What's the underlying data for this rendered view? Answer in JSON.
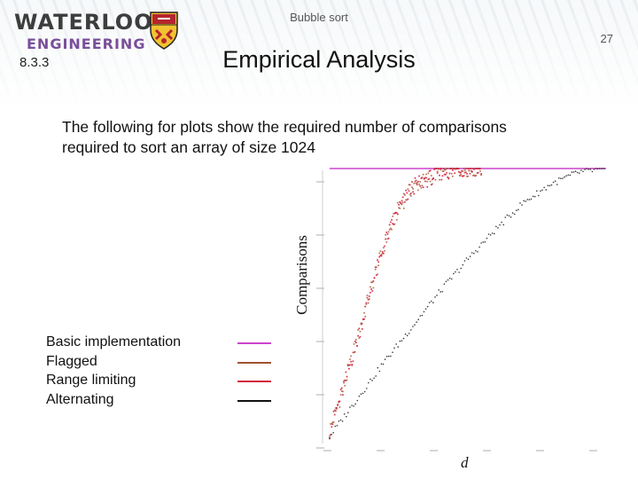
{
  "header": {
    "title": "Bubble sort",
    "page_number": "27",
    "logo_line1": "WATERLOO",
    "logo_line2": "ENGINEERING"
  },
  "slide": {
    "section": "8.3.3",
    "title": "Empirical Analysis",
    "intro_line1": "The following for plots show the required number of comparisons",
    "intro_line2": "required to sort an array of size 1024"
  },
  "legend": [
    {
      "label": "Basic implementation",
      "color": "#cc44cc"
    },
    {
      "label": "Flagged",
      "color": "#a0522d"
    },
    {
      "label": "Range limiting",
      "color": "#d21f3c"
    },
    {
      "label": "Alternating",
      "color": "#111111"
    }
  ],
  "chart_data": {
    "type": "scatter",
    "xlabel": "d",
    "ylabel": "Comparisons",
    "xlim": [
      0,
      1
    ],
    "ylim": [
      0,
      1
    ],
    "grid": false,
    "series": [
      {
        "name": "Basic implementation",
        "color": "#cc44cc",
        "constant": 1.0
      },
      {
        "name": "Flagged",
        "color": "#a0522d",
        "points": [
          [
            0,
            0.02
          ],
          [
            0.05,
            0.18
          ],
          [
            0.1,
            0.36
          ],
          [
            0.15,
            0.55
          ],
          [
            0.2,
            0.72
          ],
          [
            0.25,
            0.85
          ],
          [
            0.3,
            0.93
          ],
          [
            0.4,
            0.985
          ],
          [
            0.5,
            1.0
          ],
          [
            1.0,
            1.0
          ]
        ]
      },
      {
        "name": "Range limiting",
        "color": "#d21f3c",
        "points": [
          [
            0,
            0.02
          ],
          [
            0.05,
            0.18
          ],
          [
            0.1,
            0.36
          ],
          [
            0.15,
            0.55
          ],
          [
            0.2,
            0.72
          ],
          [
            0.25,
            0.85
          ],
          [
            0.3,
            0.93
          ],
          [
            0.4,
            0.985
          ],
          [
            0.5,
            1.0
          ],
          [
            1.0,
            1.0
          ]
        ]
      },
      {
        "name": "Alternating",
        "color": "#111111",
        "points": [
          [
            0,
            0.0
          ],
          [
            0.1,
            0.14
          ],
          [
            0.2,
            0.28
          ],
          [
            0.3,
            0.41
          ],
          [
            0.4,
            0.54
          ],
          [
            0.5,
            0.66
          ],
          [
            0.6,
            0.77
          ],
          [
            0.7,
            0.87
          ],
          [
            0.8,
            0.94
          ],
          [
            0.9,
            0.985
          ],
          [
            1.0,
            1.0
          ]
        ]
      }
    ]
  }
}
